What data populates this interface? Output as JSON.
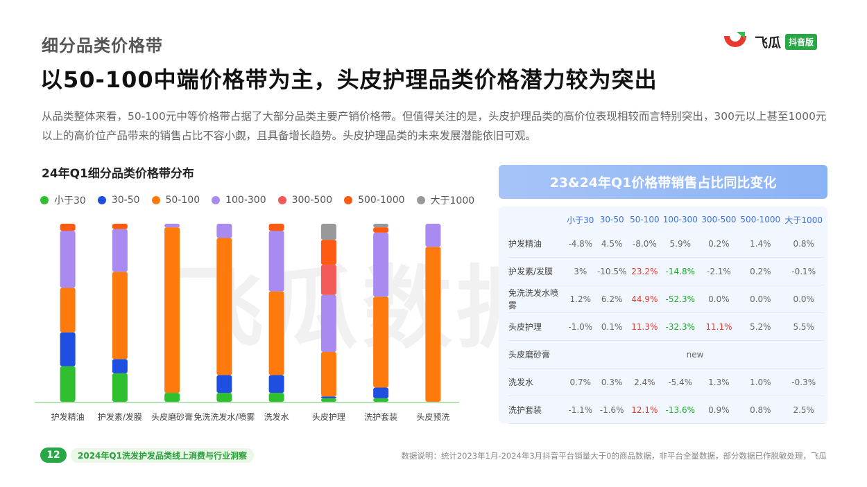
{
  "page": {
    "section_title": "细分品类价格带",
    "headline": "以50-100中端价格带为主，头皮护理品类价格潜力较为突出",
    "description": "从品类整体来看，50-100元中等价格带占据了大部分品类主要产销价格带。但值得关注的是，头皮护理品类的高价位表现相较而言特别突出，300元以上甚至1000元以上的高价位产品带来的销售占比不容小觑，且具备增长趋势。头皮护理品类的未来发展潜能依旧可观。",
    "watermark": "飞瓜数据"
  },
  "logo": {
    "word": "飞瓜",
    "badge": "抖音版",
    "colors": [
      "#e8392f",
      "#2fbf4a"
    ]
  },
  "chart_title": "24年Q1细分品类价格带分布",
  "chart_data": {
    "type": "bar",
    "stacked": true,
    "normalized": true,
    "categories": [
      "护发精油",
      "护发素/发膜",
      "头皮磨砂膏",
      "免洗洗发水/喷雾",
      "洗发水",
      "头皮护理",
      "洗护套装",
      "头皮预洗"
    ],
    "series": [
      {
        "name": "小于30",
        "color": "#2fbf2f",
        "values": [
          20,
          16,
          5,
          5,
          5,
          2,
          2,
          0
        ]
      },
      {
        "name": "30-50",
        "color": "#1f4fe0",
        "values": [
          19,
          8,
          0,
          10,
          10,
          1,
          6,
          0
        ]
      },
      {
        "name": "50-100",
        "color": "#ff7a0d",
        "values": [
          25,
          49,
          93,
          77,
          47,
          25,
          51,
          87
        ]
      },
      {
        "name": "100-300",
        "color": "#a98af0",
        "values": [
          32,
          24,
          2,
          8,
          34,
          32,
          36,
          13
        ]
      },
      {
        "name": "300-500",
        "color": "#f55a5a",
        "values": [
          0,
          0,
          0,
          0,
          0,
          17,
          0,
          0
        ]
      },
      {
        "name": "500-1000",
        "color": "#ff5a12",
        "values": [
          4,
          3,
          0,
          0,
          4,
          14,
          3,
          0
        ]
      },
      {
        "name": "大于1000",
        "color": "#999999",
        "values": [
          0,
          0,
          0,
          0,
          0,
          9,
          2,
          0
        ]
      }
    ],
    "ylim": [
      0,
      100
    ],
    "grid": false,
    "legend": "top"
  },
  "yoy_table": {
    "title": "23&24年Q1价格带销售占比同比变化",
    "columns": [
      "小于30",
      "30-50",
      "50-100",
      "100-300",
      "300-500",
      "500-1000",
      "大于1000"
    ],
    "rows": [
      {
        "name": "护发精油",
        "cells": [
          {
            "v": "-4.8%"
          },
          {
            "v": "4.5%"
          },
          {
            "v": "-8.0%"
          },
          {
            "v": "5.9%"
          },
          {
            "v": "0.2%"
          },
          {
            "v": "1.4%"
          },
          {
            "v": "0.8%"
          }
        ]
      },
      {
        "name": "护发素/发膜",
        "cells": [
          {
            "v": "3%"
          },
          {
            "v": "-10.5%"
          },
          {
            "v": "23.2%",
            "hl": "red"
          },
          {
            "v": "-14.8%",
            "hl": "green"
          },
          {
            "v": "-2.1%"
          },
          {
            "v": "0.2%"
          },
          {
            "v": "-0.1%"
          }
        ]
      },
      {
        "name": "免洗洗发水喷雾",
        "cells": [
          {
            "v": "1.2%"
          },
          {
            "v": "6.2%"
          },
          {
            "v": "44.9%",
            "hl": "red"
          },
          {
            "v": "-52.3%",
            "hl": "green"
          },
          {
            "v": "0.0%"
          },
          {
            "v": "0.0%"
          },
          {
            "v": "0.0%"
          }
        ]
      },
      {
        "name": "头皮护理",
        "cells": [
          {
            "v": "-1.0%"
          },
          {
            "v": "0.1%"
          },
          {
            "v": "11.3%",
            "hl": "red"
          },
          {
            "v": "-32.3%",
            "hl": "green"
          },
          {
            "v": "11.1%",
            "hl": "red"
          },
          {
            "v": "5.2%"
          },
          {
            "v": "5.5%"
          }
        ]
      },
      {
        "name": "头皮磨砂膏",
        "merged": "new"
      },
      {
        "name": "洗发水",
        "cells": [
          {
            "v": "0.7%"
          },
          {
            "v": "0.3%"
          },
          {
            "v": "2.4%"
          },
          {
            "v": "-5.4%"
          },
          {
            "v": "1.3%"
          },
          {
            "v": "1.0%"
          },
          {
            "v": "-0.3%"
          }
        ]
      },
      {
        "name": "洗护套装",
        "cells": [
          {
            "v": "-1.1%"
          },
          {
            "v": "-1.6%"
          },
          {
            "v": "12.1%",
            "hl": "red"
          },
          {
            "v": "-13.6%",
            "hl": "green"
          },
          {
            "v": "0.9%"
          },
          {
            "v": "0.8%"
          },
          {
            "v": "2.5%"
          }
        ]
      }
    ]
  },
  "footer": {
    "page_number": "12",
    "report_title": "2024年Q1洗发护发品类线上消费与行业洞察",
    "note": "数据说明：统计2023年1月-2024年3月抖音平台销量大于0的商品数据，非平台全量数据，部分数据已作脱敏处理，飞瓜"
  }
}
